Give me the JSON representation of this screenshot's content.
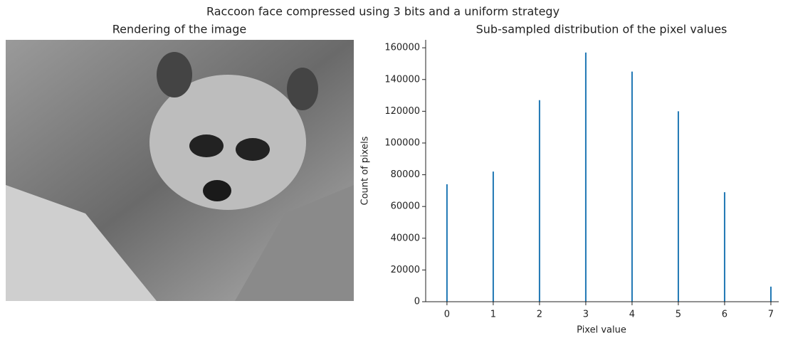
{
  "title": "Raccoon face compressed using 3 bits and a uniform strategy",
  "chart_data": [
    {
      "type": "image",
      "title": "Rendering of the image"
    },
    {
      "type": "bar",
      "title": "Sub-sampled distribution of the pixel values",
      "x_label": "Pixel value",
      "y_label": "Count of pixels",
      "x": [
        0,
        1,
        2,
        3,
        4,
        5,
        6,
        7
      ],
      "values": [
        74000,
        82000,
        127000,
        157000,
        145000,
        120000,
        69000,
        9500
      ],
      "color": "#1f77b4",
      "xlim": [
        -0.46,
        7.17
      ],
      "ylim": [
        0,
        165000
      ],
      "xticks": [
        0,
        1,
        2,
        3,
        4,
        5,
        6,
        7
      ],
      "yticks": [
        0,
        20000,
        40000,
        60000,
        80000,
        100000,
        120000,
        140000,
        160000
      ]
    }
  ]
}
